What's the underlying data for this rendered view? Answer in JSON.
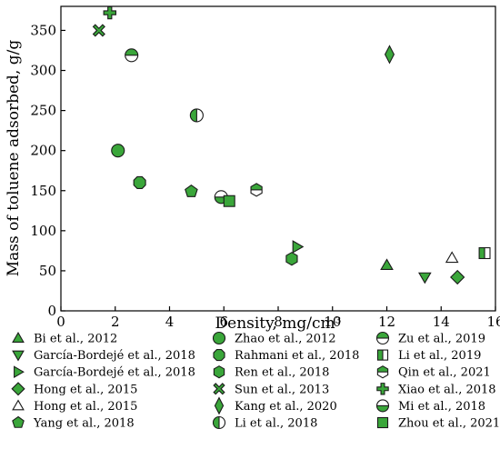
{
  "chart_data": {
    "type": "scatter",
    "title": "",
    "xlabel": "Density, mg/cm³",
    "ylabel": "Mass of toluene adsorbed, g/g",
    "xlim": [
      0,
      16
    ],
    "ylim": [
      0,
      380
    ],
    "x_ticks": [
      0,
      2,
      4,
      6,
      8,
      10,
      12,
      14,
      16
    ],
    "y_ticks": [
      0,
      50,
      100,
      150,
      200,
      250,
      300,
      350
    ],
    "grid": false,
    "legend_position": "bottom",
    "colors": {
      "fill": "#3aa63a",
      "edge": "#1a1a1a",
      "hollow": "#ffffff"
    },
    "series": [
      {
        "name": "Bi et al., 2012",
        "marker": "triangle-up",
        "points": [
          [
            12.0,
            57
          ]
        ]
      },
      {
        "name": "García-Bordejé et al., 2018",
        "marker": "triangle-down",
        "points": [
          [
            13.4,
            42
          ]
        ]
      },
      {
        "name": "García-Bordejé et al., 2018",
        "marker": "triangle-right",
        "points": [
          [
            8.7,
            80
          ]
        ]
      },
      {
        "name": "Hong et al., 2015",
        "marker": "diamond",
        "points": [
          [
            14.6,
            42
          ]
        ]
      },
      {
        "name": "Hong et al., 2015",
        "marker": "triangle-up-hollow",
        "points": [
          [
            14.4,
            66
          ]
        ]
      },
      {
        "name": "Yang et al., 2018",
        "marker": "pentagon",
        "points": [
          [
            4.8,
            149
          ]
        ]
      },
      {
        "name": "Zhao et al., 2012",
        "marker": "circle",
        "points": [
          [
            2.1,
            200
          ]
        ]
      },
      {
        "name": "Rahmani et al., 2018",
        "marker": "octagon",
        "points": [
          [
            2.9,
            160
          ]
        ]
      },
      {
        "name": "Ren et al., 2018",
        "marker": "hexagon",
        "points": [
          [
            8.5,
            65
          ]
        ]
      },
      {
        "name": "Sun et al., 2013",
        "marker": "x",
        "points": [
          [
            1.4,
            350
          ]
        ]
      },
      {
        "name": "Kang et al., 2020",
        "marker": "thin-diamond",
        "points": [
          [
            12.1,
            320
          ]
        ]
      },
      {
        "name": "Li et al., 2018",
        "marker": "circle-left-half",
        "points": [
          [
            5.0,
            244
          ]
        ]
      },
      {
        "name": "Zu et al., 2019",
        "marker": "circle-top-half",
        "points": [
          [
            2.6,
            319
          ]
        ]
      },
      {
        "name": "Li et al., 2019",
        "marker": "square-left-half",
        "points": [
          [
            15.6,
            72
          ]
        ]
      },
      {
        "name": "Qin et al., 2021",
        "marker": "hexagon-top-half",
        "points": [
          [
            7.2,
            151
          ]
        ]
      },
      {
        "name": "Xiao et al., 2018",
        "marker": "plus",
        "points": [
          [
            1.8,
            372
          ]
        ]
      },
      {
        "name": "Mi et al., 2018",
        "marker": "circle-bottom-half",
        "points": [
          [
            5.9,
            142
          ]
        ]
      },
      {
        "name": "Zhou et al., 2021",
        "marker": "square",
        "points": [
          [
            6.2,
            137
          ]
        ]
      }
    ]
  }
}
